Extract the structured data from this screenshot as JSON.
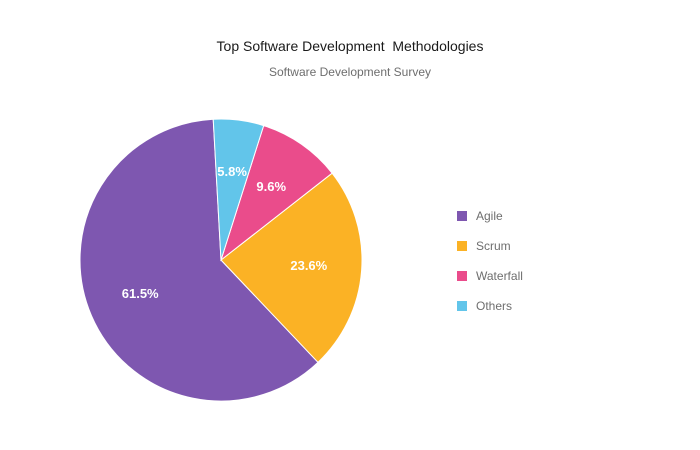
{
  "chart_data": {
    "type": "pie",
    "title": "Top Software Development  Methodologies",
    "subtitle": "Software Development Survey",
    "categories": [
      "Agile",
      "Scrum",
      "Waterfall",
      "Others"
    ],
    "values": [
      61.5,
      23.6,
      9.6,
      5.8
    ],
    "labels": [
      "61.5%",
      "23.6%",
      "9.6%",
      "5.8%"
    ],
    "colors": [
      "#7e57b0",
      "#fbb225",
      "#ea4c8b",
      "#62c5ea"
    ],
    "legend_position": "right",
    "legend": [
      {
        "label": "Agile",
        "color": "#7e57b0"
      },
      {
        "label": "Scrum",
        "color": "#fbb225"
      },
      {
        "label": "Waterfall",
        "color": "#ea4c8b"
      },
      {
        "label": "Others",
        "color": "#62c5ea"
      }
    ]
  }
}
